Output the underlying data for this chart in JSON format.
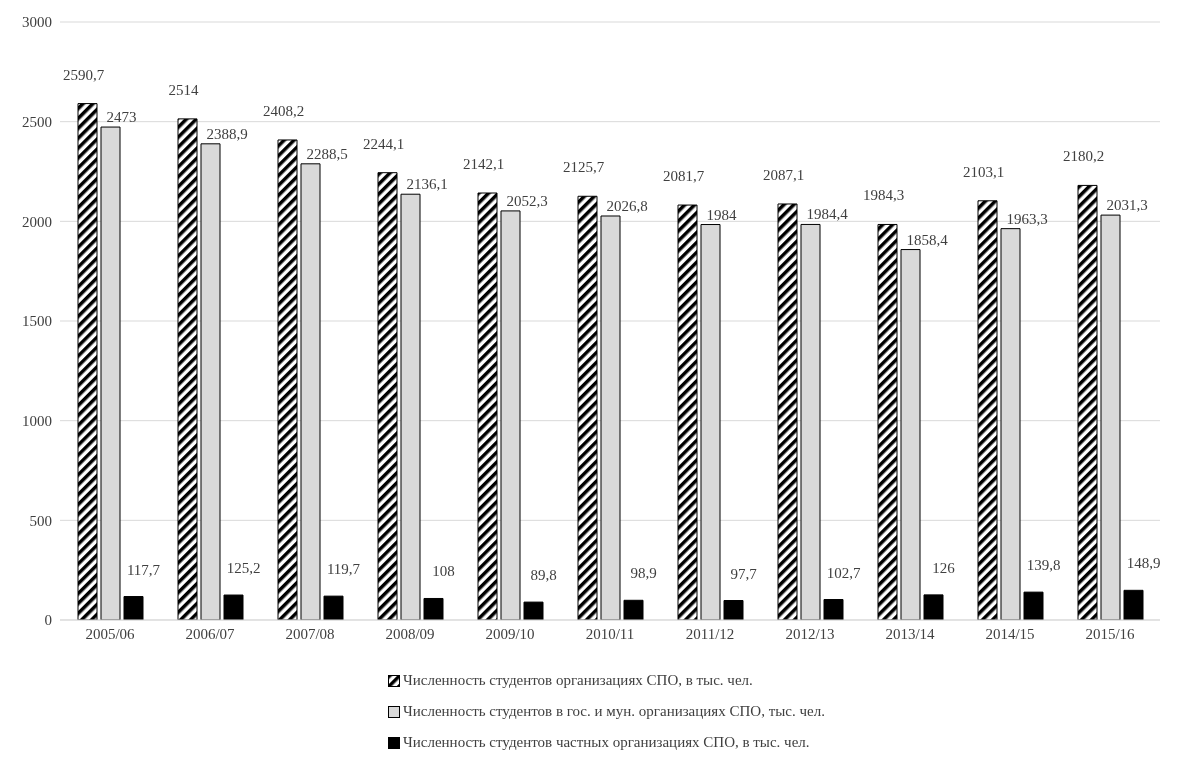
{
  "chart_data": {
    "type": "bar",
    "categories": [
      "2005/06",
      "2006/07",
      "2007/08",
      "2008/09",
      "2009/10",
      "2010/11",
      "2011/12",
      "2012/13",
      "2013/14",
      "2014/15",
      "2015/16"
    ],
    "series": [
      {
        "name": "Численность студентов организациях СПО, в тыс. чел.",
        "color": "#000000",
        "values": [
          2590.7,
          2514,
          2408.2,
          2244.1,
          2142.1,
          2125.7,
          2081.7,
          2087.1,
          1984.3,
          2103.1,
          2180.2
        ],
        "value_labels": [
          "2590,7",
          "2514",
          "2408,2",
          "2244,1",
          "2142,1",
          "2125,7",
          "2081,7",
          "2087,1",
          "1984,3",
          "2103,1",
          "2180,2"
        ]
      },
      {
        "name": "Численность студентов в гос. и мун. организациях СПО, тыс. чел.",
        "color": "#d9d9d9",
        "values": [
          2473,
          2388.9,
          2288.5,
          2136.1,
          2052.3,
          2026.8,
          1984,
          1984.4,
          1858.4,
          1963.3,
          2031.3
        ],
        "value_labels": [
          "2473",
          "2388,9",
          "2288,5",
          "2136,1",
          "2052,3",
          "2026,8",
          "1984",
          "1984,4",
          "1858,4",
          "1963,3",
          "2031,3"
        ]
      },
      {
        "name": "Численность студентов частных организациях СПО, в тыс. чел.",
        "color": "#000000",
        "values": [
          117.7,
          125.2,
          119.7,
          108,
          89.8,
          98.9,
          97.7,
          102.7,
          126,
          139.8,
          148.9
        ],
        "value_labels": [
          "117,7",
          "125,2",
          "119,7",
          "108",
          "89,8",
          "98,9",
          "97,7",
          "102,7",
          "126",
          "139,8",
          "148,9"
        ]
      }
    ],
    "ylim": [
      0,
      3000
    ],
    "yticks": [
      0,
      500,
      1000,
      1500,
      2000,
      2500,
      3000
    ],
    "grid": "y",
    "legend": "bottom"
  }
}
